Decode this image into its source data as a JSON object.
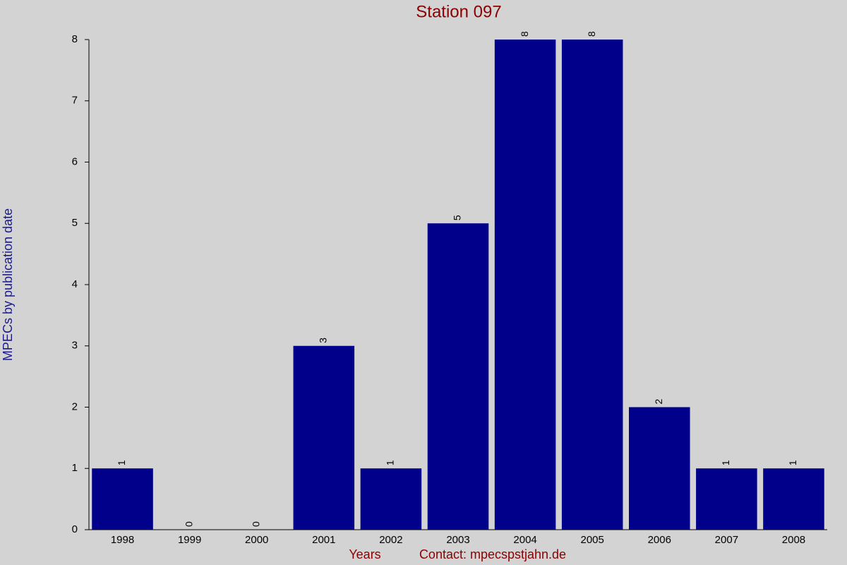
{
  "chart_data": {
    "type": "bar",
    "title": "Station 097",
    "x_label": "Years",
    "y_label": "MPECs by publication date",
    "annotation": "Contact: mpecspstjahn.de",
    "categories": [
      "1998",
      "1999",
      "2000",
      "2001",
      "2002",
      "2003",
      "2004",
      "2005",
      "2006",
      "2007",
      "2008"
    ],
    "values": [
      1,
      0,
      0,
      3,
      1,
      5,
      8,
      8,
      2,
      1,
      1
    ],
    "color": "#00008b",
    "ylim": [
      0,
      8
    ],
    "yticks": [
      0,
      1,
      2,
      3,
      4,
      5,
      6,
      7,
      8
    ],
    "grid": false
  }
}
